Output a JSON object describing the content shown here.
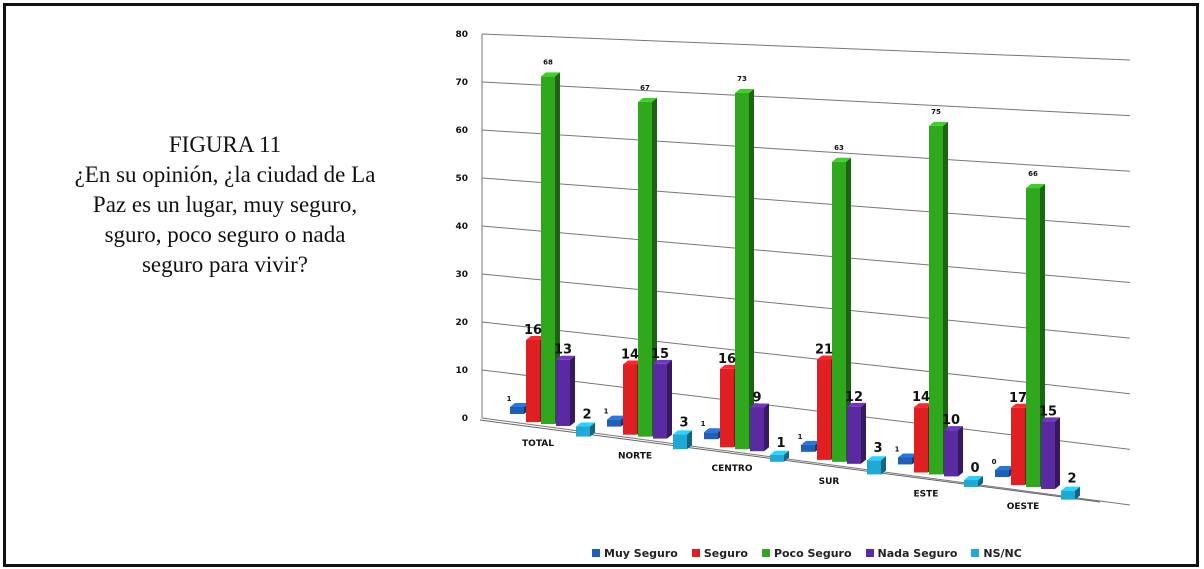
{
  "caption": {
    "lines": [
      "FIGURA 11",
      "¿En su opinión, ¿la ciudad de La",
      "Paz es un lugar, muy seguro,",
      "sguro, poco seguro  o nada",
      "seguro para vivir?"
    ]
  },
  "chart_data": {
    "type": "bar",
    "categories": [
      "TOTAL",
      "NORTE",
      "CENTRO",
      "SUR",
      "ESTE",
      "OESTE"
    ],
    "series": [
      {
        "name": "Muy Seguro",
        "color": "#1f5fb5",
        "values": [
          1,
          1,
          1,
          1,
          1,
          0
        ]
      },
      {
        "name": "Seguro",
        "color": "#e01f22",
        "values": [
          16,
          14,
          16,
          21,
          14,
          17
        ]
      },
      {
        "name": "Poco Seguro",
        "color": "#2fa81d",
        "values": [
          68,
          67,
          73,
          63,
          75,
          66
        ]
      },
      {
        "name": "Nada Seguro",
        "color": "#5a2aa0",
        "values": [
          13,
          15,
          9,
          12,
          10,
          15
        ]
      },
      {
        "name": "NS/NC",
        "color": "#21a9d6",
        "values": [
          2,
          3,
          1,
          3,
          0,
          2
        ]
      }
    ],
    "yticks": [
      "0",
      "10",
      "20",
      "30",
      "40",
      "50",
      "60",
      "70",
      "80"
    ],
    "ylim": [
      0,
      80
    ],
    "grid": true,
    "legend_position": "bottom",
    "style": "3d-perspective"
  }
}
